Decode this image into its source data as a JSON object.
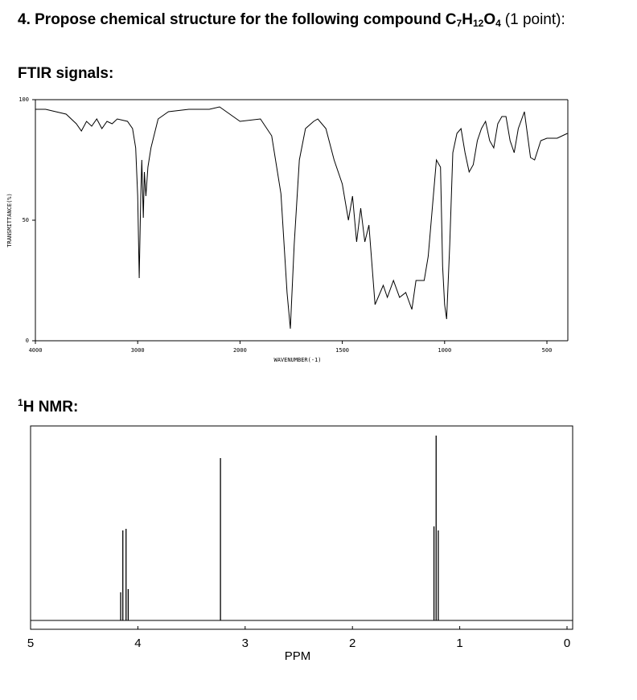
{
  "question": {
    "title": "4. Propose chemical structure for the following compound",
    "formula": [
      "C",
      "7",
      "H",
      "12",
      "O",
      "4"
    ],
    "points": "(1 point):"
  },
  "ftir_heading": "FTIR signals:",
  "nmr_heading": {
    "sup": "1",
    "text": "H NMR:"
  },
  "chart_data": [
    {
      "type": "line",
      "ylabel": "TRANSMITTANCE(%)",
      "xlabel": "WAVENUMBER(-1)",
      "color": "#000000",
      "x": [
        4000,
        3900,
        3800,
        3700,
        3600,
        3550,
        3500,
        3450,
        3400,
        3350,
        3300,
        3250,
        3200,
        3100,
        3050,
        3020,
        3000,
        2985,
        2970,
        2960,
        2945,
        2935,
        2920,
        2900,
        2870,
        2800,
        2700,
        2500,
        2300,
        2200,
        2100,
        2000,
        1900,
        1845,
        1800,
        1770,
        1754,
        1735,
        1710,
        1680,
        1640,
        1620,
        1580,
        1540,
        1500,
        1470,
        1450,
        1430,
        1410,
        1390,
        1370,
        1340,
        1300,
        1280,
        1250,
        1220,
        1190,
        1160,
        1140,
        1100,
        1080,
        1060,
        1040,
        1020,
        1010,
        1000,
        990,
        975,
        960,
        940,
        920,
        900,
        880,
        860,
        840,
        820,
        800,
        780,
        760,
        740,
        720,
        700,
        680,
        660,
        640,
        610,
        580,
        560,
        530,
        500,
        450,
        400
      ],
      "values": [
        96,
        96,
        95,
        94,
        90,
        87,
        91,
        89,
        92,
        88,
        91,
        90,
        92,
        91,
        88,
        80,
        60,
        26,
        60,
        75,
        51,
        70,
        60,
        72,
        80,
        92,
        95,
        96,
        96,
        97,
        94,
        91,
        92,
        85,
        61,
        20,
        5,
        40,
        75,
        88,
        91,
        92,
        88,
        75,
        65,
        50,
        60,
        41,
        55,
        41,
        48,
        15,
        23,
        18,
        25,
        18,
        20,
        13,
        25,
        25,
        35,
        55,
        75,
        72,
        31,
        15,
        9,
        40,
        78,
        86,
        88,
        78,
        70,
        73,
        83,
        88,
        91,
        83,
        80,
        90,
        93,
        93,
        83,
        78,
        88,
        95,
        76,
        75,
        83,
        84,
        84,
        86
      ],
      "xlim": [
        4000,
        400
      ],
      "xticks": [
        4000,
        3000,
        2000,
        1500,
        1000,
        500
      ],
      "ylim": [
        0,
        100
      ],
      "yticks": [
        100,
        50,
        0
      ]
    },
    {
      "type": "stick",
      "xlabel": "PPM",
      "color": "#000000",
      "x": [
        4.16,
        4.14,
        4.11,
        4.09,
        3.23,
        1.24,
        1.22,
        1.2
      ],
      "values": [
        35,
        112,
        114,
        39,
        202,
        117,
        230,
        112
      ],
      "xlim": [
        5,
        0
      ],
      "xticks": [
        5,
        4,
        3,
        2,
        1,
        0
      ]
    }
  ]
}
